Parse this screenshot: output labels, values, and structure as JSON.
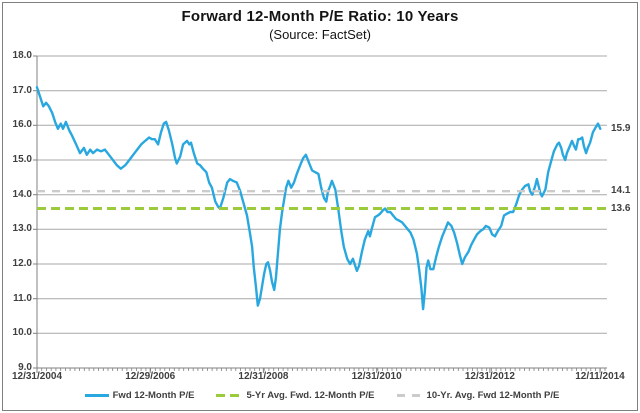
{
  "frame": {
    "border_color": "#7f7f7f",
    "background": "#ffffff"
  },
  "chart_data": {
    "type": "line",
    "title": "Forward 12-Month P/E Ratio: 10 Years",
    "subtitle": "(Source: FactSet)",
    "grid": true,
    "legend_position": "bottom",
    "colors": {
      "gridline": "#a8a8a8",
      "axis": "#808080",
      "label_text": "#3f3f3f",
      "line_blue": "#29a8e0",
      "avg5_green": "#9bcb3b",
      "avg10_gray": "#cbcbcb"
    },
    "x_axis": {
      "tick_labels": [
        "12/31/2004",
        "12/29/2006",
        "12/31/2008",
        "12/31/2010",
        "12/31/2012",
        "12/11/2014"
      ],
      "tick_years": [
        2005.0,
        2007.0,
        2009.0,
        2011.0,
        2013.0,
        2014.945
      ],
      "range": [
        2005.0,
        2014.945
      ],
      "minor_tick_count": 120
    },
    "y_axis": {
      "min": 9.0,
      "max": 18.0,
      "step": 1.0,
      "tick_labels": [
        "18.0",
        "17.0",
        "16.0",
        "15.0",
        "14.0",
        "13.0",
        "12.0",
        "11.0",
        "10.0",
        "9.0"
      ]
    },
    "right_labels": [
      {
        "text": "15.9",
        "value": 15.9
      },
      {
        "text": "14.1",
        "value": 14.1
      },
      {
        "text": "13.6",
        "value": 13.6
      }
    ],
    "series": [
      {
        "name": "Fwd 12-Month P/E",
        "type": "line",
        "color": "#29a8e0",
        "thickness": 2.4,
        "last_value": 15.9,
        "points": [
          [
            2005.0,
            17.1
          ],
          [
            2005.05,
            16.85
          ],
          [
            2005.11,
            16.55
          ],
          [
            2005.16,
            16.65
          ],
          [
            2005.21,
            16.55
          ],
          [
            2005.27,
            16.35
          ],
          [
            2005.32,
            16.1
          ],
          [
            2005.37,
            15.9
          ],
          [
            2005.42,
            16.05
          ],
          [
            2005.46,
            15.9
          ],
          [
            2005.51,
            16.1
          ],
          [
            2005.57,
            15.85
          ],
          [
            2005.62,
            15.7
          ],
          [
            2005.69,
            15.45
          ],
          [
            2005.76,
            15.2
          ],
          [
            2005.83,
            15.35
          ],
          [
            2005.88,
            15.15
          ],
          [
            2005.94,
            15.3
          ],
          [
            2005.99,
            15.2
          ],
          [
            2006.06,
            15.3
          ],
          [
            2006.13,
            15.25
          ],
          [
            2006.2,
            15.3
          ],
          [
            2006.27,
            15.15
          ],
          [
            2006.34,
            15.0
          ],
          [
            2006.41,
            14.85
          ],
          [
            2006.48,
            14.75
          ],
          [
            2006.56,
            14.85
          ],
          [
            2006.63,
            15.0
          ],
          [
            2006.7,
            15.15
          ],
          [
            2006.77,
            15.3
          ],
          [
            2006.84,
            15.45
          ],
          [
            2006.91,
            15.55
          ],
          [
            2006.98,
            15.65
          ],
          [
            2007.03,
            15.6
          ],
          [
            2007.08,
            15.6
          ],
          [
            2007.14,
            15.45
          ],
          [
            2007.19,
            15.8
          ],
          [
            2007.24,
            16.05
          ],
          [
            2007.28,
            16.1
          ],
          [
            2007.33,
            15.85
          ],
          [
            2007.39,
            15.45
          ],
          [
            2007.44,
            15.05
          ],
          [
            2007.47,
            14.9
          ],
          [
            2007.53,
            15.1
          ],
          [
            2007.58,
            15.45
          ],
          [
            2007.65,
            15.55
          ],
          [
            2007.69,
            15.45
          ],
          [
            2007.72,
            15.5
          ],
          [
            2007.77,
            15.2
          ],
          [
            2007.83,
            14.9
          ],
          [
            2007.88,
            14.85
          ],
          [
            2007.93,
            14.75
          ],
          [
            2007.99,
            14.65
          ],
          [
            2008.04,
            14.35
          ],
          [
            2008.09,
            14.2
          ],
          [
            2008.15,
            13.8
          ],
          [
            2008.2,
            13.65
          ],
          [
            2008.23,
            13.6
          ],
          [
            2008.29,
            13.9
          ],
          [
            2008.36,
            14.35
          ],
          [
            2008.41,
            14.45
          ],
          [
            2008.46,
            14.4
          ],
          [
            2008.53,
            14.35
          ],
          [
            2008.59,
            14.1
          ],
          [
            2008.64,
            13.8
          ],
          [
            2008.71,
            13.4
          ],
          [
            2008.76,
            12.9
          ],
          [
            2008.8,
            12.5
          ],
          [
            2008.83,
            11.9
          ],
          [
            2008.87,
            11.3
          ],
          [
            2008.9,
            10.8
          ],
          [
            2008.94,
            11.0
          ],
          [
            2008.98,
            11.4
          ],
          [
            2009.01,
            11.7
          ],
          [
            2009.05,
            12.0
          ],
          [
            2009.08,
            12.05
          ],
          [
            2009.12,
            11.8
          ],
          [
            2009.15,
            11.5
          ],
          [
            2009.19,
            11.25
          ],
          [
            2009.22,
            11.6
          ],
          [
            2009.26,
            12.4
          ],
          [
            2009.29,
            13.0
          ],
          [
            2009.33,
            13.5
          ],
          [
            2009.37,
            13.9
          ],
          [
            2009.4,
            14.2
          ],
          [
            2009.44,
            14.4
          ],
          [
            2009.49,
            14.2
          ],
          [
            2009.54,
            14.35
          ],
          [
            2009.59,
            14.6
          ],
          [
            2009.65,
            14.85
          ],
          [
            2009.7,
            15.05
          ],
          [
            2009.75,
            15.15
          ],
          [
            2009.81,
            14.9
          ],
          [
            2009.86,
            14.7
          ],
          [
            2009.91,
            14.65
          ],
          [
            2009.97,
            14.6
          ],
          [
            2010.02,
            14.2
          ],
          [
            2010.07,
            13.9
          ],
          [
            2010.11,
            13.8
          ],
          [
            2010.14,
            14.1
          ],
          [
            2010.18,
            14.25
          ],
          [
            2010.21,
            14.4
          ],
          [
            2010.27,
            14.15
          ],
          [
            2010.32,
            13.6
          ],
          [
            2010.37,
            13.0
          ],
          [
            2010.42,
            12.5
          ],
          [
            2010.48,
            12.15
          ],
          [
            2010.53,
            12.0
          ],
          [
            2010.58,
            12.15
          ],
          [
            2010.62,
            11.95
          ],
          [
            2010.65,
            11.8
          ],
          [
            2010.69,
            11.95
          ],
          [
            2010.74,
            12.35
          ],
          [
            2010.79,
            12.7
          ],
          [
            2010.85,
            12.95
          ],
          [
            2010.88,
            12.8
          ],
          [
            2010.92,
            13.05
          ],
          [
            2010.97,
            13.35
          ],
          [
            2011.02,
            13.4
          ],
          [
            2011.06,
            13.45
          ],
          [
            2011.11,
            13.55
          ],
          [
            2011.15,
            13.6
          ],
          [
            2011.19,
            13.5
          ],
          [
            2011.24,
            13.5
          ],
          [
            2011.29,
            13.4
          ],
          [
            2011.34,
            13.3
          ],
          [
            2011.4,
            13.25
          ],
          [
            2011.45,
            13.2
          ],
          [
            2011.5,
            13.1
          ],
          [
            2011.55,
            13.0
          ],
          [
            2011.6,
            12.9
          ],
          [
            2011.65,
            12.7
          ],
          [
            2011.71,
            12.3
          ],
          [
            2011.75,
            11.85
          ],
          [
            2011.79,
            11.3
          ],
          [
            2011.82,
            10.7
          ],
          [
            2011.85,
            11.2
          ],
          [
            2011.88,
            11.9
          ],
          [
            2011.91,
            12.1
          ],
          [
            2011.95,
            11.85
          ],
          [
            2012.0,
            11.85
          ],
          [
            2012.05,
            12.2
          ],
          [
            2012.1,
            12.5
          ],
          [
            2012.16,
            12.8
          ],
          [
            2012.21,
            13.0
          ],
          [
            2012.26,
            13.2
          ],
          [
            2012.32,
            13.1
          ],
          [
            2012.37,
            12.9
          ],
          [
            2012.42,
            12.6
          ],
          [
            2012.47,
            12.25
          ],
          [
            2012.51,
            12.0
          ],
          [
            2012.56,
            12.2
          ],
          [
            2012.62,
            12.35
          ],
          [
            2012.67,
            12.55
          ],
          [
            2012.72,
            12.7
          ],
          [
            2012.77,
            12.85
          ],
          [
            2012.83,
            12.95
          ],
          [
            2012.88,
            13.0
          ],
          [
            2012.93,
            13.1
          ],
          [
            2012.99,
            13.05
          ],
          [
            2013.04,
            12.85
          ],
          [
            2013.09,
            12.8
          ],
          [
            2013.14,
            12.95
          ],
          [
            2013.2,
            13.1
          ],
          [
            2013.25,
            13.4
          ],
          [
            2013.3,
            13.45
          ],
          [
            2013.36,
            13.5
          ],
          [
            2013.41,
            13.5
          ],
          [
            2013.46,
            13.7
          ],
          [
            2013.52,
            14.0
          ],
          [
            2013.57,
            14.15
          ],
          [
            2013.62,
            14.25
          ],
          [
            2013.68,
            14.3
          ],
          [
            2013.71,
            14.1
          ],
          [
            2013.75,
            14.0
          ],
          [
            2013.8,
            14.25
          ],
          [
            2013.83,
            14.45
          ],
          [
            2013.89,
            14.05
          ],
          [
            2013.92,
            13.95
          ],
          [
            2013.98,
            14.15
          ],
          [
            2014.03,
            14.65
          ],
          [
            2014.08,
            14.95
          ],
          [
            2014.13,
            15.25
          ],
          [
            2014.19,
            15.45
          ],
          [
            2014.22,
            15.5
          ],
          [
            2014.26,
            15.35
          ],
          [
            2014.29,
            15.15
          ],
          [
            2014.33,
            15.0
          ],
          [
            2014.36,
            15.2
          ],
          [
            2014.4,
            15.35
          ],
          [
            2014.45,
            15.55
          ],
          [
            2014.49,
            15.4
          ],
          [
            2014.52,
            15.3
          ],
          [
            2014.56,
            15.6
          ],
          [
            2014.59,
            15.6
          ],
          [
            2014.63,
            15.65
          ],
          [
            2014.66,
            15.4
          ],
          [
            2014.7,
            15.2
          ],
          [
            2014.73,
            15.35
          ],
          [
            2014.77,
            15.5
          ],
          [
            2014.82,
            15.8
          ],
          [
            2014.87,
            15.95
          ],
          [
            2014.91,
            16.05
          ],
          [
            2014.95,
            15.9
          ]
        ]
      },
      {
        "name": "5-Yr Avg. Fwd. 12-Month P/E",
        "type": "hline",
        "style": "dashed",
        "color": "#9bcb3b",
        "thickness": 3,
        "dash": [
          9,
          5
        ],
        "value": 13.6
      },
      {
        "name": "10-Yr. Avg. Fwd 12-Month P/E",
        "type": "hline",
        "style": "dashed",
        "color": "#cbcbcb",
        "thickness": 2.4,
        "dash": [
          8,
          7
        ],
        "value": 14.1
      }
    ]
  }
}
